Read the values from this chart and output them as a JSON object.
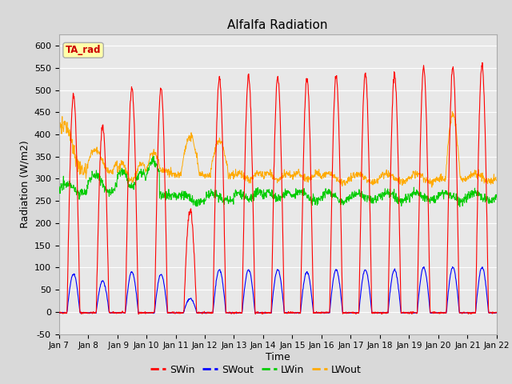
{
  "title": "Alfalfa Radiation",
  "xlabel": "Time",
  "ylabel": "Radiation (W/m2)",
  "ylim": [
    -50,
    625
  ],
  "yticks": [
    -50,
    0,
    50,
    100,
    150,
    200,
    250,
    300,
    350,
    400,
    450,
    500,
    550,
    600
  ],
  "n_days": 15,
  "start_day": 7,
  "points_per_day": 96,
  "fig_bg_color": "#d9d9d9",
  "plot_bg_color": "#e8e8e8",
  "grid_color": "#ffffff",
  "annotation_text": "TA_rad",
  "annotation_bg": "#ffffaa",
  "annotation_border": "#aaaaaa",
  "annotation_text_color": "#cc0000",
  "colors": {
    "SWin": "#ff0000",
    "SWout": "#0000ff",
    "LWin": "#00cc00",
    "LWout": "#ffaa00"
  },
  "xtick_labels": [
    "Jan 7",
    "Jan 8",
    " Jan 9",
    "Jan 10",
    "Jan 11",
    "Jan 12",
    "Jan 13",
    "Jan 14",
    "Jan 15",
    "Jan 16",
    "Jan 17",
    "Jan 18",
    "Jan 19",
    "Jan 20",
    "Jan 21",
    "Jan 22"
  ]
}
